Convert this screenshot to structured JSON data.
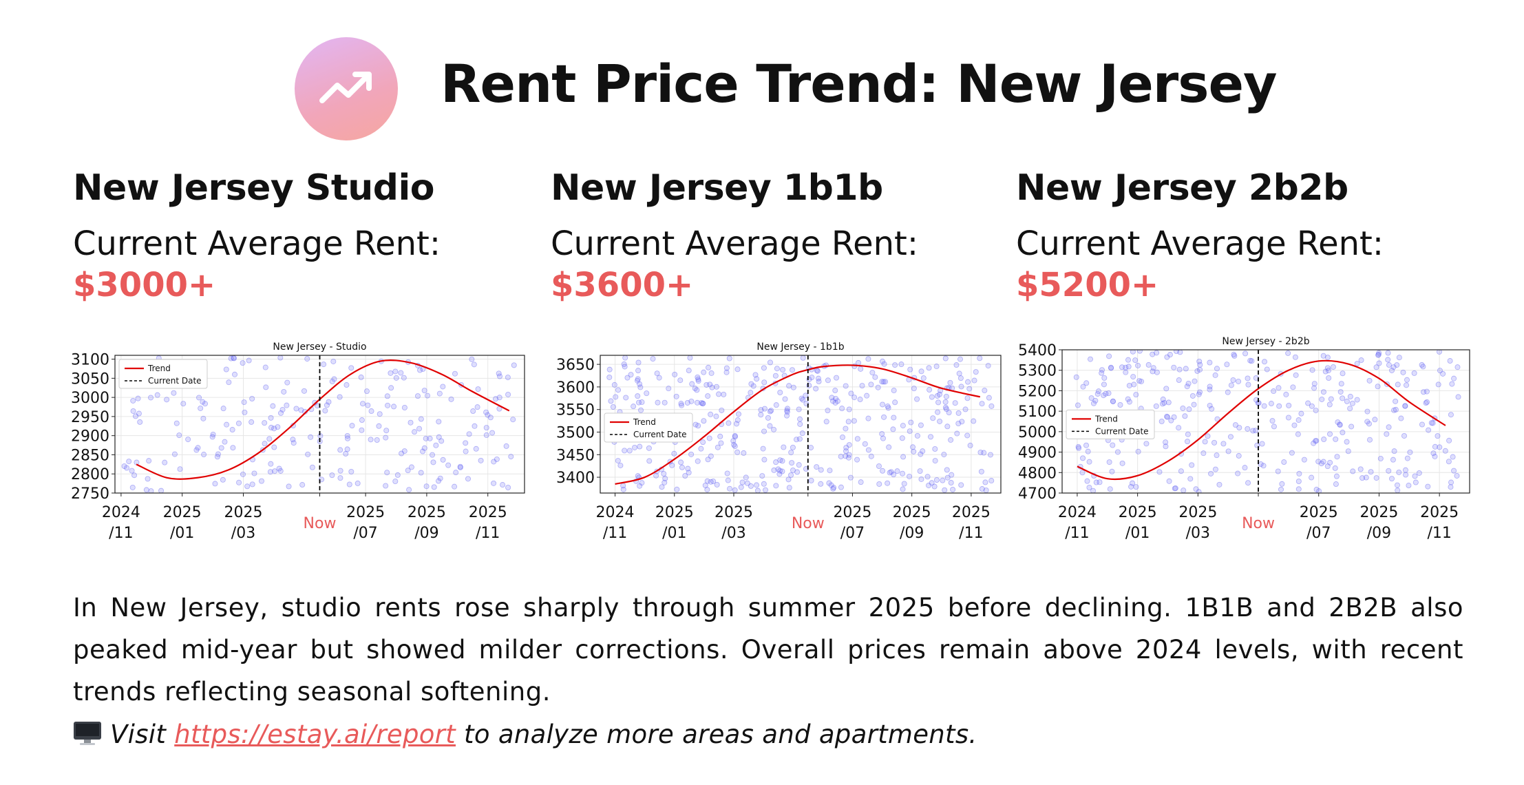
{
  "header": {
    "title": "Rent Price Trend:  New Jersey",
    "logo_icon": "trending-up-icon",
    "logo_gradient": [
      "#e2b6f4",
      "#f6a7a0"
    ]
  },
  "cards": [
    {
      "title": "New Jersey Studio",
      "label": "Current Average Rent:",
      "price": "$3000+"
    },
    {
      "title": "New Jersey 1b1b",
      "label": "Current Average Rent:",
      "price": "$3600+"
    },
    {
      "title": "New Jersey 2b2b",
      "label": "Current Average Rent:",
      "price": "$5200+"
    }
  ],
  "summary": "In New Jersey, studio rents rose sharply through summer 2025 before declining. 1B1B and 2B2B also peaked mid-year but showed milder corrections. Overall prices remain above 2024 levels, with recent trends reflecting seasonal softening.",
  "footer": {
    "icon": "desktop-monitor-icon",
    "visit_prefix": "Visit ",
    "link_text": "https://estay.ai/report",
    "visit_suffix": " to analyze more areas and apartments."
  },
  "colors": {
    "accent": "#e85a5a",
    "trend": "#e00000",
    "points": "#6b6bf5"
  },
  "chart_data": [
    {
      "type": "scatter",
      "title": "New Jersey - Studio",
      "x_ticks": [
        "2024\n/11",
        "2025\n/01",
        "2025\n/03",
        "Now",
        "2025\n/07",
        "2025\n/09",
        "2025\n/11"
      ],
      "x_ticks_pos": [
        0,
        2,
        4,
        6.5,
        8,
        10,
        12
      ],
      "xlim": [
        -0.2,
        13.2
      ],
      "ylim": [
        2750,
        3110
      ],
      "y_ticks": [
        2750,
        2800,
        2850,
        2900,
        2950,
        3000,
        3050,
        3100
      ],
      "current_date_x": 6.5,
      "legend": [
        "Trend",
        "Current Date"
      ],
      "legend_position": "upper-left",
      "grid": true,
      "trend": {
        "name": "Trend",
        "x": [
          0.5,
          1.5,
          2.5,
          3.5,
          4.5,
          5.5,
          6.5,
          7.5,
          8.5,
          9.5,
          10.5,
          11.5,
          12.7
        ],
        "y": [
          2825,
          2790,
          2790,
          2810,
          2855,
          2920,
          2995,
          3060,
          3095,
          3090,
          3060,
          3015,
          2965
        ]
      },
      "scatter": {
        "count": 240,
        "y_min": 2755,
        "y_max": 3105,
        "seed": 11
      }
    },
    {
      "type": "scatter",
      "title": "New Jersey - 1b1b",
      "x_ticks": [
        "2024\n/11",
        "2025\n/01",
        "2025\n/03",
        "Now",
        "2025\n/07",
        "2025\n/09",
        "2025\n/11"
      ],
      "x_ticks_pos": [
        0,
        2,
        4,
        6.5,
        8,
        10,
        12
      ],
      "xlim": [
        -0.5,
        13
      ],
      "ylim": [
        3365,
        3670
      ],
      "y_ticks": [
        3400,
        3450,
        3500,
        3550,
        3600,
        3650
      ],
      "current_date_x": 6.5,
      "legend": [
        "Trend",
        "Current Date"
      ],
      "legend_position": "center-left",
      "grid": true,
      "trend": {
        "name": "Trend",
        "x": [
          0,
          1,
          2,
          3,
          4,
          5,
          6,
          6.5,
          7,
          8,
          9,
          10,
          11,
          12.3
        ],
        "y": [
          3385,
          3400,
          3440,
          3490,
          3545,
          3595,
          3628,
          3638,
          3645,
          3648,
          3640,
          3620,
          3597,
          3578
        ]
      },
      "scatter": {
        "count": 420,
        "y_min": 3370,
        "y_max": 3665,
        "seed": 23
      }
    },
    {
      "type": "scatter",
      "title": "New Jersey - 2b2b",
      "x_ticks": [
        "2024\n/11",
        "2025\n/01",
        "2025\n/03",
        "Now",
        "2025\n/07",
        "2025\n/09",
        "2025\n/11"
      ],
      "x_ticks_pos": [
        0,
        2,
        4,
        6,
        8,
        10,
        12
      ],
      "xlim": [
        -0.5,
        13
      ],
      "ylim": [
        4700,
        5400
      ],
      "y_ticks": [
        4700,
        4800,
        4900,
        5000,
        5100,
        5200,
        5300,
        5400
      ],
      "current_date_x": 6,
      "legend": [
        "Trend",
        "Current Date"
      ],
      "legend_position": "center-left",
      "grid": true,
      "trend": {
        "name": "Trend",
        "x": [
          0,
          1,
          2,
          3,
          4,
          5,
          6,
          7,
          8,
          9,
          10,
          11,
          12.2
        ],
        "y": [
          4830,
          4770,
          4785,
          4855,
          4960,
          5090,
          5210,
          5300,
          5345,
          5330,
          5260,
          5145,
          5030
        ]
      },
      "scatter": {
        "count": 360,
        "y_min": 4705,
        "y_max": 5395,
        "seed": 37
      }
    }
  ]
}
